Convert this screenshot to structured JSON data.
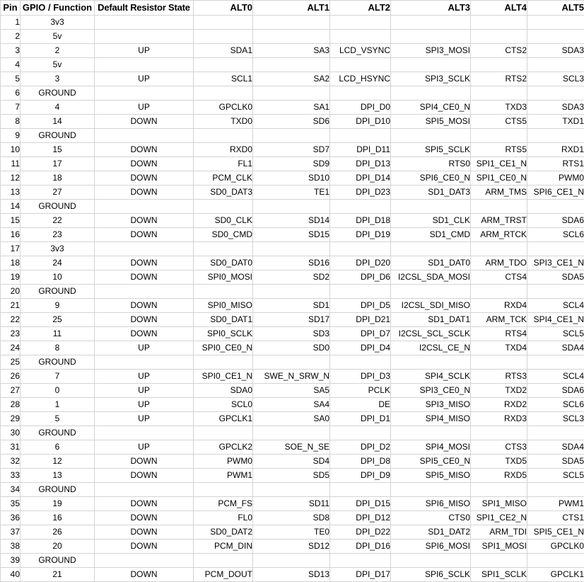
{
  "colors": {
    "gridline": "#d4d4d4",
    "pin_column_divider": "#000000",
    "text": "#000000",
    "background": "#ffffff"
  },
  "table": {
    "columns": [
      {
        "key": "pin",
        "label": "Pin"
      },
      {
        "key": "gpio",
        "label": "GPIO / Function"
      },
      {
        "key": "resistor",
        "label": "Default Resistor State"
      },
      {
        "key": "alt0",
        "label": "ALT0"
      },
      {
        "key": "alt1",
        "label": "ALT1"
      },
      {
        "key": "alt2",
        "label": "ALT2"
      },
      {
        "key": "alt3",
        "label": "ALT3"
      },
      {
        "key": "alt4",
        "label": "ALT4"
      },
      {
        "key": "alt5",
        "label": "ALT5"
      }
    ],
    "rows": [
      {
        "pin": "1",
        "gpio": "3v3",
        "resistor": "",
        "alt0": "",
        "alt1": "",
        "alt2": "",
        "alt3": "",
        "alt4": "",
        "alt5": "",
        "bold": [
          "gpio"
        ]
      },
      {
        "pin": "2",
        "gpio": "5v",
        "resistor": "",
        "alt0": "",
        "alt1": "",
        "alt2": "",
        "alt3": "",
        "alt4": "",
        "alt5": "",
        "bold": [
          "gpio"
        ]
      },
      {
        "pin": "3",
        "gpio": "2",
        "resistor": "UP",
        "alt0": "SDA1",
        "alt1": "SA3",
        "alt2": "LCD_VSYNC",
        "alt3": "SPI3_MOSI",
        "alt4": "CTS2",
        "alt5": "SDA3",
        "bold": [
          "alt0"
        ]
      },
      {
        "pin": "4",
        "gpio": "5v",
        "resistor": "",
        "alt0": "",
        "alt1": "",
        "alt2": "",
        "alt3": "",
        "alt4": "",
        "alt5": "",
        "bold": [
          "gpio"
        ]
      },
      {
        "pin": "5",
        "gpio": "3",
        "resistor": "UP",
        "alt0": "SCL1",
        "alt1": "SA2",
        "alt2": "LCD_HSYNC",
        "alt3": "SPI3_SCLK",
        "alt4": "RTS2",
        "alt5": "SCL3",
        "bold": [
          "alt0"
        ]
      },
      {
        "pin": "6",
        "gpio": "GROUND",
        "resistor": "",
        "alt0": "",
        "alt1": "",
        "alt2": "",
        "alt3": "",
        "alt4": "",
        "alt5": "",
        "bold": [
          "gpio"
        ]
      },
      {
        "pin": "7",
        "gpio": "4",
        "resistor": "UP",
        "alt0": "GPCLK0",
        "alt1": "SA1",
        "alt2": "DPI_D0",
        "alt3": "SPI4_CE0_N",
        "alt4": "TXD3",
        "alt5": "SDA3",
        "bold": [
          "alt0"
        ]
      },
      {
        "pin": "8",
        "gpio": "14",
        "resistor": "DOWN",
        "alt0": "TXD0",
        "alt1": "SD6",
        "alt2": "DPI_D10",
        "alt3": "SPI5_MOSI",
        "alt4": "CTS5",
        "alt5": "TXD1",
        "bold": [
          "alt0"
        ]
      },
      {
        "pin": "9",
        "gpio": "GROUND",
        "resistor": "",
        "alt0": "",
        "alt1": "",
        "alt2": "",
        "alt3": "",
        "alt4": "",
        "alt5": "",
        "bold": [
          "gpio"
        ]
      },
      {
        "pin": "10",
        "gpio": "15",
        "resistor": "DOWN",
        "alt0": "RXD0",
        "alt1": "SD7",
        "alt2": "DPI_D11",
        "alt3": "SPI5_SCLK",
        "alt4": "RTS5",
        "alt5": "RXD1",
        "bold": [
          "alt0"
        ]
      },
      {
        "pin": "11",
        "gpio": "17",
        "resistor": "DOWN",
        "alt0": "FL1",
        "alt1": "SD9",
        "alt2": "DPI_D13",
        "alt3": "RTS0",
        "alt4": "SPI1_CE1_N",
        "alt5": "RTS1",
        "bold": []
      },
      {
        "pin": "12",
        "gpio": "18",
        "resistor": "DOWN",
        "alt0": "PCM_CLK",
        "alt1": "SD10",
        "alt2": "DPI_D14",
        "alt3": "SPI6_CE0_N",
        "alt4": "SPI1_CE0_N",
        "alt5": "PWM0",
        "bold": [
          "alt5"
        ]
      },
      {
        "pin": "13",
        "gpio": "27",
        "resistor": "DOWN",
        "alt0": "SD0_DAT3",
        "alt1": "TE1",
        "alt2": "DPI_D23",
        "alt3": "SD1_DAT3",
        "alt4": "ARM_TMS",
        "alt5": "SPI6_CE1_N",
        "bold": []
      },
      {
        "pin": "14",
        "gpio": "GROUND",
        "resistor": "",
        "alt0": "",
        "alt1": "",
        "alt2": "",
        "alt3": "",
        "alt4": "",
        "alt5": "",
        "bold": [
          "gpio"
        ]
      },
      {
        "pin": "15",
        "gpio": "22",
        "resistor": "DOWN",
        "alt0": "SD0_CLK",
        "alt1": "SD14",
        "alt2": "DPI_D18",
        "alt3": "SD1_CLK",
        "alt4": "ARM_TRST",
        "alt5": "SDA6",
        "bold": []
      },
      {
        "pin": "16",
        "gpio": "23",
        "resistor": "DOWN",
        "alt0": "SD0_CMD",
        "alt1": "SD15",
        "alt2": "DPI_D19",
        "alt3": "SD1_CMD",
        "alt4": "ARM_RTCK",
        "alt5": "SCL6",
        "bold": []
      },
      {
        "pin": "17",
        "gpio": "3v3",
        "resistor": "",
        "alt0": "",
        "alt1": "",
        "alt2": "",
        "alt3": "",
        "alt4": "",
        "alt5": "",
        "bold": [
          "gpio"
        ]
      },
      {
        "pin": "18",
        "gpio": "24",
        "resistor": "DOWN",
        "alt0": "SD0_DAT0",
        "alt1": "SD16",
        "alt2": "DPI_D20",
        "alt3": "SD1_DAT0",
        "alt4": "ARM_TDO",
        "alt5": "SPI3_CE1_N",
        "bold": []
      },
      {
        "pin": "19",
        "gpio": "10",
        "resistor": "DOWN",
        "alt0": "SPI0_MOSI",
        "alt1": "SD2",
        "alt2": "DPI_D6",
        "alt3": "I2CSL_SDA_MOSI",
        "alt4": "CTS4",
        "alt5": "SDA5",
        "bold": [
          "alt0"
        ]
      },
      {
        "pin": "20",
        "gpio": "GROUND",
        "resistor": "",
        "alt0": "",
        "alt1": "",
        "alt2": "",
        "alt3": "",
        "alt4": "",
        "alt5": "",
        "bold": [
          "gpio"
        ]
      },
      {
        "pin": "21",
        "gpio": "9",
        "resistor": "DOWN",
        "alt0": "SPI0_MISO",
        "alt1": "SD1",
        "alt2": "DPI_D5",
        "alt3": "I2CSL_SDI_MISO",
        "alt4": "RXD4",
        "alt5": "SCL4",
        "bold": [
          "alt0"
        ]
      },
      {
        "pin": "22",
        "gpio": "25",
        "resistor": "DOWN",
        "alt0": "SD0_DAT1",
        "alt1": "SD17",
        "alt2": "DPI_D21",
        "alt3": "SD1_DAT1",
        "alt4": "ARM_TCK",
        "alt5": "SPI4_CE1_N",
        "bold": []
      },
      {
        "pin": "23",
        "gpio": "11",
        "resistor": "DOWN",
        "alt0": "SPI0_SCLK",
        "alt1": "SD3",
        "alt2": "DPI_D7",
        "alt3": "I2CSL_SCL_SCLK",
        "alt4": "RTS4",
        "alt5": "SCL5",
        "bold": [
          "alt0"
        ]
      },
      {
        "pin": "24",
        "gpio": "8",
        "resistor": "UP",
        "alt0": "SPI0_CE0_N",
        "alt1": "SD0",
        "alt2": "DPI_D4",
        "alt3": "I2CSL_CE_N",
        "alt4": "TXD4",
        "alt5": "SDA4",
        "bold": [
          "alt0"
        ]
      },
      {
        "pin": "25",
        "gpio": "GROUND",
        "resistor": "",
        "alt0": "",
        "alt1": "",
        "alt2": "",
        "alt3": "",
        "alt4": "",
        "alt5": "",
        "bold": [
          "gpio"
        ]
      },
      {
        "pin": "26",
        "gpio": "7",
        "resistor": "UP",
        "alt0": "SPI0_CE1_N",
        "alt1": "SWE_N_SRW_N",
        "alt2": "DPI_D3",
        "alt3": "SPI4_SCLK",
        "alt4": "RTS3",
        "alt5": "SCL4",
        "bold": [
          "alt0"
        ]
      },
      {
        "pin": "27",
        "gpio": "0",
        "resistor": "UP",
        "alt0": "SDA0",
        "alt1": "SA5",
        "alt2": "PCLK",
        "alt3": "SPI3_CE0_N",
        "alt4": "TXD2",
        "alt5": "SDA6",
        "bold": [
          "alt0"
        ]
      },
      {
        "pin": "28",
        "gpio": "1",
        "resistor": "UP",
        "alt0": "SCL0",
        "alt1": "SA4",
        "alt2": "DE",
        "alt3": "SPI3_MISO",
        "alt4": "RXD2",
        "alt5": "SCL6",
        "bold": [
          "alt0"
        ]
      },
      {
        "pin": "29",
        "gpio": "5",
        "resistor": "UP",
        "alt0": "GPCLK1",
        "alt1": "SA0",
        "alt2": "DPI_D1",
        "alt3": "SPI4_MISO",
        "alt4": "RXD3",
        "alt5": "SCL3",
        "bold": []
      },
      {
        "pin": "30",
        "gpio": "GROUND",
        "resistor": "",
        "alt0": "",
        "alt1": "",
        "alt2": "",
        "alt3": "",
        "alt4": "",
        "alt5": "",
        "bold": [
          "gpio"
        ]
      },
      {
        "pin": "31",
        "gpio": "6",
        "resistor": "UP",
        "alt0": "GPCLK2",
        "alt1": "SOE_N_SE",
        "alt2": "DPI_D2",
        "alt3": "SPI4_MOSI",
        "alt4": "CTS3",
        "alt5": "SDA4",
        "bold": []
      },
      {
        "pin": "32",
        "gpio": "12",
        "resistor": "DOWN",
        "alt0": "PWM0",
        "alt1": "SD4",
        "alt2": "DPI_D8",
        "alt3": "SPI5_CE0_N",
        "alt4": "TXD5",
        "alt5": "SDA5",
        "bold": [
          "alt0"
        ]
      },
      {
        "pin": "33",
        "gpio": "13",
        "resistor": "DOWN",
        "alt0": "PWM1",
        "alt1": "SD5",
        "alt2": "DPI_D9",
        "alt3": "SPI5_MISO",
        "alt4": "RXD5",
        "alt5": "SCL5",
        "bold": [
          "alt0"
        ]
      },
      {
        "pin": "34",
        "gpio": "GROUND",
        "resistor": "",
        "alt0": "",
        "alt1": "",
        "alt2": "",
        "alt3": "",
        "alt4": "",
        "alt5": "",
        "bold": [
          "gpio"
        ]
      },
      {
        "pin": "35",
        "gpio": "19",
        "resistor": "DOWN",
        "alt0": "PCM_FS",
        "alt1": "SD11",
        "alt2": "DPI_D15",
        "alt3": "SPI6_MISO",
        "alt4": "SPI1_MISO",
        "alt5": "PWM1",
        "bold": []
      },
      {
        "pin": "36",
        "gpio": "16",
        "resistor": "DOWN",
        "alt0": "FL0",
        "alt1": "SD8",
        "alt2": "DPI_D12",
        "alt3": "CTS0",
        "alt4": "SPI1_CE2_N",
        "alt5": "CTS1",
        "bold": []
      },
      {
        "pin": "37",
        "gpio": "26",
        "resistor": "DOWN",
        "alt0": "SD0_DAT2",
        "alt1": "TE0",
        "alt2": "DPI_D22",
        "alt3": "SD1_DAT2",
        "alt4": "ARM_TDI",
        "alt5": "SPI5_CE1_N",
        "bold": []
      },
      {
        "pin": "38",
        "gpio": "20",
        "resistor": "DOWN",
        "alt0": "PCM_DIN",
        "alt1": "SD12",
        "alt2": "DPI_D16",
        "alt3": "SPI6_MOSI",
        "alt4": "SPI1_MOSI",
        "alt5": "GPCLK0",
        "bold": []
      },
      {
        "pin": "39",
        "gpio": "GROUND",
        "resistor": "",
        "alt0": "",
        "alt1": "",
        "alt2": "",
        "alt3": "",
        "alt4": "",
        "alt5": "",
        "bold": [
          "gpio"
        ]
      },
      {
        "pin": "40",
        "gpio": "21",
        "resistor": "DOWN",
        "alt0": "PCM_DOUT",
        "alt1": "SD13",
        "alt2": "DPI_D17",
        "alt3": "SPI6_SCLK",
        "alt4": "SPI1_SCLK",
        "alt5": "GPCLK1",
        "bold": []
      }
    ]
  }
}
